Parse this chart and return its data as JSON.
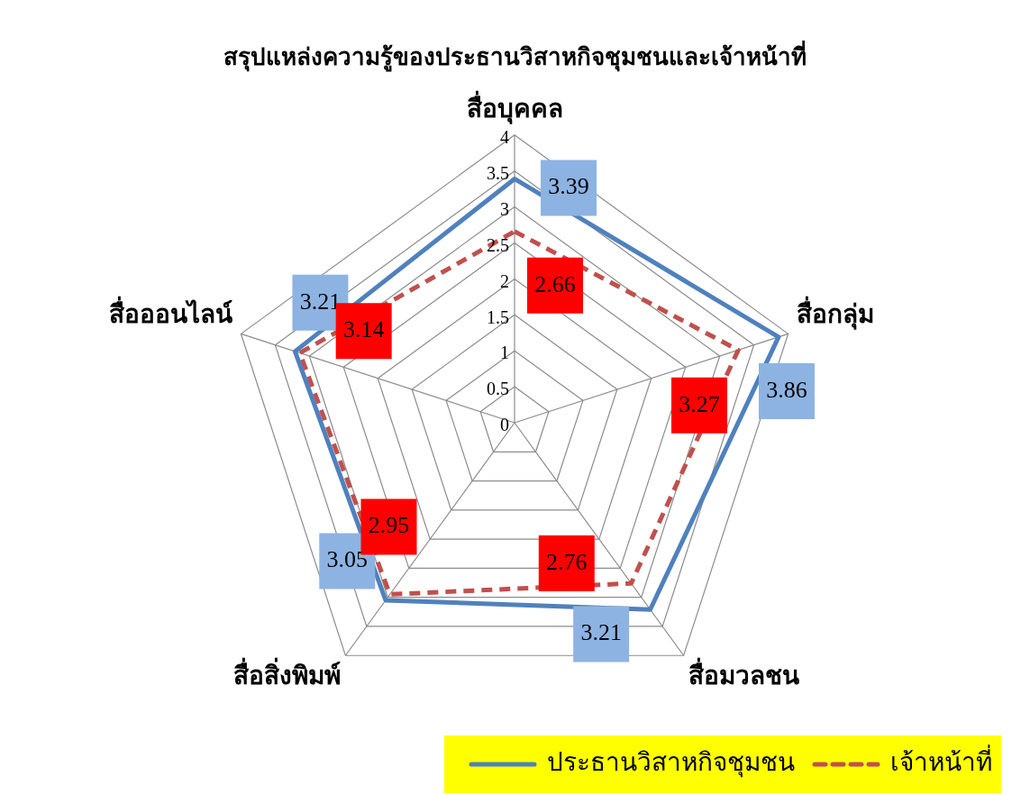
{
  "chart_data": {
    "type": "radar",
    "title": "สรุปแหล่งความรู้ของประธานวิสาหกิจชุมชนและเจ้าหน้าที่",
    "categories": [
      "สื่อบุคคล",
      "สื่อกลุ่ม",
      "สื่อมวลชน",
      "สื่อสิ่งพิมพ์",
      "สื่อออนไลน์"
    ],
    "series": [
      {
        "name": "ประธานวิสาหกิจชุมชน",
        "color": "#4f81bd",
        "values": [
          3.39,
          3.86,
          3.21,
          3.05,
          3.21
        ],
        "line_style": "solid"
      },
      {
        "name": "เจ้าหน้าที่",
        "color": "#c0504d",
        "values": [
          2.66,
          3.27,
          2.76,
          2.95,
          3.14
        ],
        "line_style": "dashed"
      }
    ],
    "ylim": [
      0,
      4
    ],
    "yticks": [
      0,
      0.5,
      1,
      1.5,
      2,
      2.5,
      3,
      3.5,
      4
    ],
    "grid": true,
    "legend": "bottom right",
    "marker": "none",
    "data_labels": true
  }
}
